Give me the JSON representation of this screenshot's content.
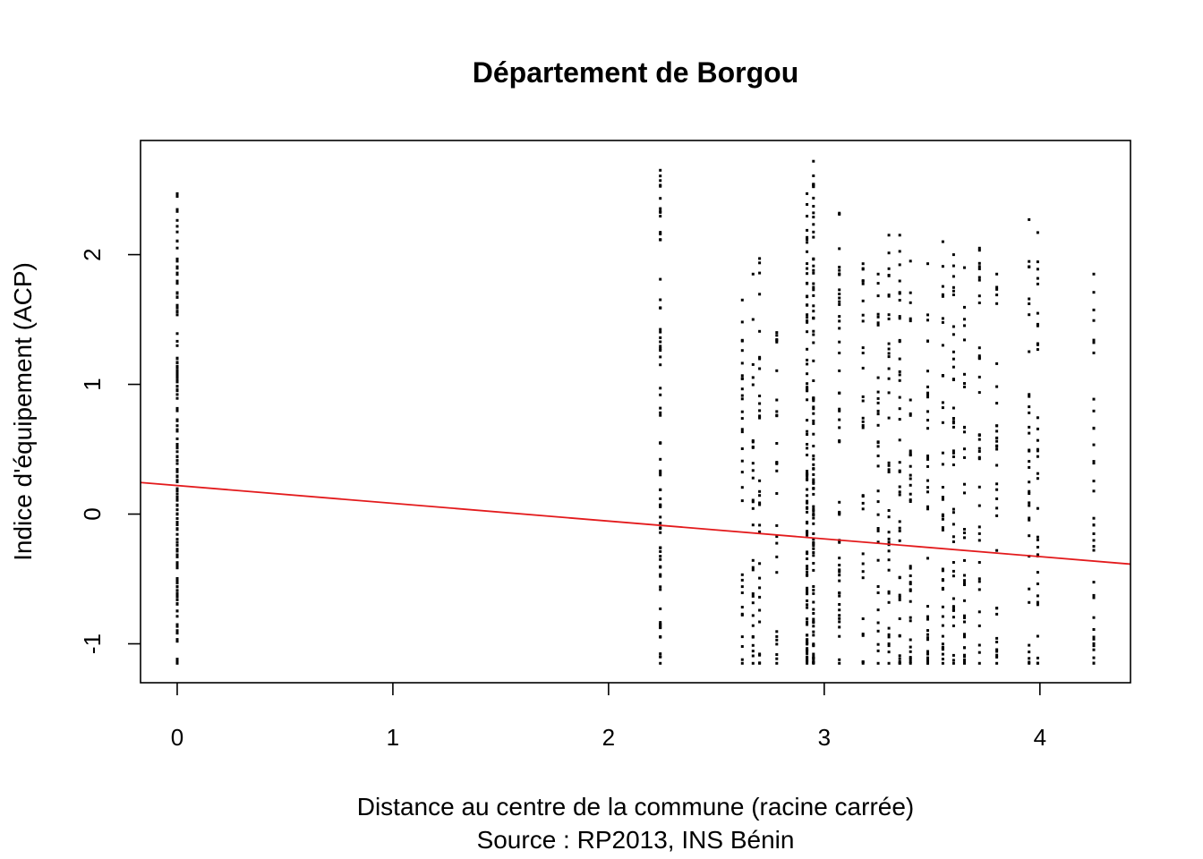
{
  "chart_data": {
    "type": "scatter",
    "title": "Département de Borgou",
    "xlabel": "Distance au centre de la commune (racine carrée)",
    "source": "Source : RP2013, INS Bénin",
    "ylabel": "Indice d'équipement (ACP)",
    "xlim": [
      -0.17,
      4.42
    ],
    "ylim": [
      -1.3,
      2.88
    ],
    "xticks": [
      0,
      1,
      2,
      3,
      4
    ],
    "yticks": [
      -1,
      0,
      1,
      2
    ],
    "grid": false,
    "legend": "none",
    "point_color": "#000000",
    "fit_color": "#e31a1c",
    "regression": {
      "intercept": 0.22,
      "slope": -0.137
    },
    "point_columns": [
      {
        "x": 0.0,
        "ymin": -1.15,
        "ymax": 2.47,
        "n": 160
      },
      {
        "x": 2.24,
        "ymin": -1.15,
        "ymax": 2.65,
        "n": 70
      },
      {
        "x": 2.62,
        "ymin": -1.15,
        "ymax": 1.65,
        "n": 30
      },
      {
        "x": 2.67,
        "ymin": -1.15,
        "ymax": 1.85,
        "n": 28
      },
      {
        "x": 2.7,
        "ymin": -1.15,
        "ymax": 1.97,
        "n": 28
      },
      {
        "x": 2.78,
        "ymin": -1.15,
        "ymax": 1.4,
        "n": 26
      },
      {
        "x": 2.92,
        "ymin": -1.15,
        "ymax": 2.47,
        "n": 90
      },
      {
        "x": 2.95,
        "ymin": -1.15,
        "ymax": 2.72,
        "n": 95
      },
      {
        "x": 3.07,
        "ymin": -1.15,
        "ymax": 2.32,
        "n": 48
      },
      {
        "x": 3.18,
        "ymin": -1.15,
        "ymax": 1.93,
        "n": 30
      },
      {
        "x": 3.25,
        "ymin": -1.15,
        "ymax": 1.85,
        "n": 32
      },
      {
        "x": 3.3,
        "ymin": -1.15,
        "ymax": 2.15,
        "n": 38
      },
      {
        "x": 3.35,
        "ymin": -1.15,
        "ymax": 2.15,
        "n": 40
      },
      {
        "x": 3.4,
        "ymin": -1.15,
        "ymax": 1.95,
        "n": 34
      },
      {
        "x": 3.48,
        "ymin": -1.15,
        "ymax": 1.93,
        "n": 36
      },
      {
        "x": 3.55,
        "ymin": -1.15,
        "ymax": 2.1,
        "n": 38
      },
      {
        "x": 3.6,
        "ymin": -1.15,
        "ymax": 2.0,
        "n": 38
      },
      {
        "x": 3.65,
        "ymin": -1.15,
        "ymax": 1.9,
        "n": 36
      },
      {
        "x": 3.72,
        "ymin": -1.15,
        "ymax": 2.05,
        "n": 34
      },
      {
        "x": 3.8,
        "ymin": -1.15,
        "ymax": 1.85,
        "n": 32
      },
      {
        "x": 3.95,
        "ymin": -1.15,
        "ymax": 2.27,
        "n": 32
      },
      {
        "x": 3.99,
        "ymin": -1.15,
        "ymax": 2.17,
        "n": 32
      },
      {
        "x": 4.25,
        "ymin": -1.15,
        "ymax": 1.85,
        "n": 34
      }
    ]
  }
}
